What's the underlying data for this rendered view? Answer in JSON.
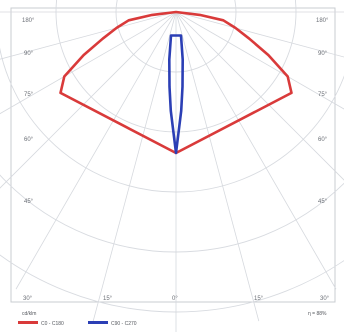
{
  "chart_data": {
    "type": "polar",
    "unit_label": "cd/klm",
    "scale_label": "η = 88%",
    "angle_labels": {
      "top_left": "180°",
      "top_right": "180°",
      "left": [
        "90°",
        "75°",
        "60°",
        "45°"
      ],
      "right": [
        "90°",
        "75°",
        "60°",
        "45°"
      ],
      "bottom": [
        "30°",
        "15°",
        "0°",
        "15°",
        "30°"
      ]
    },
    "series": [
      {
        "name": "C0 - C180",
        "color": "#d93a3a",
        "points": [
          [
            -83,
            80
          ],
          [
            -80,
            160
          ],
          [
            -75,
            205
          ],
          [
            -70,
            260
          ],
          [
            -65,
            340
          ],
          [
            -60,
            430
          ],
          [
            -55,
            470
          ],
          [
            0,
            470
          ],
          [
            55,
            470
          ],
          [
            60,
            430
          ],
          [
            65,
            340
          ],
          [
            70,
            260
          ],
          [
            75,
            205
          ],
          [
            80,
            160
          ],
          [
            83,
            80
          ],
          [
            90,
            0
          ]
        ]
      },
      {
        "name": "C90 - C270",
        "color": "#2b3fb5",
        "points": [
          [
            -12,
            80
          ],
          [
            -8,
            160
          ],
          [
            -5,
            250
          ],
          [
            -3,
            330
          ],
          [
            0,
            470
          ],
          [
            3,
            330
          ],
          [
            5,
            250
          ],
          [
            8,
            160
          ],
          [
            12,
            80
          ]
        ]
      }
    ]
  }
}
